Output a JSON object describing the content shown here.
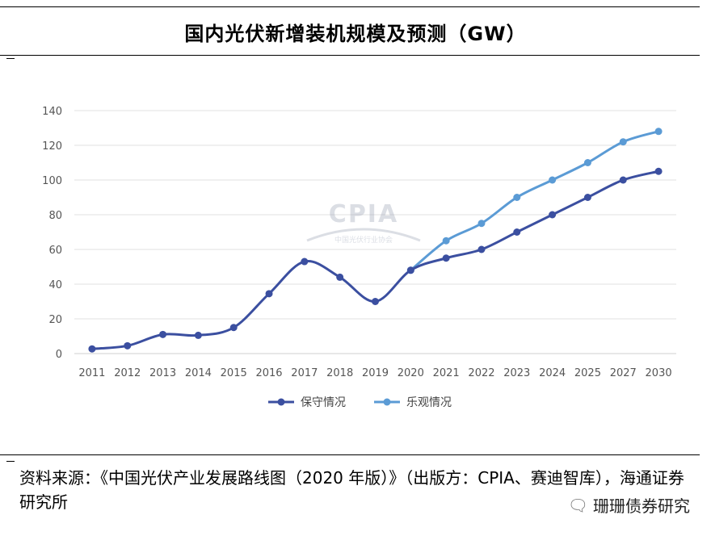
{
  "header": {
    "title": "国内光伏新增装机规模及预测（GW）"
  },
  "watermark": {
    "logo_text": "CPIA",
    "logo_subtext": "中国光伏行业协会"
  },
  "chart_data": {
    "type": "line",
    "title": "国内光伏新增装机规模及预测（GW）",
    "categories": [
      "2011",
      "2012",
      "2013",
      "2014",
      "2015",
      "2016",
      "2017",
      "2018",
      "2019",
      "2020",
      "2021",
      "2022",
      "2023",
      "2024",
      "2025",
      "2027",
      "2030"
    ],
    "series": [
      {
        "name": "保守情况",
        "color": "#3b4fa0",
        "values": [
          2.7,
          4.5,
          11,
          10.5,
          15,
          34.5,
          53,
          44,
          30,
          48,
          55,
          60,
          70,
          80,
          90,
          100,
          105
        ]
      },
      {
        "name": "乐观情况",
        "color": "#5b9bd5",
        "values": [
          null,
          null,
          null,
          null,
          null,
          null,
          null,
          null,
          null,
          48,
          65,
          75,
          90,
          100,
          110,
          122,
          128
        ]
      }
    ],
    "yticks": [
      0,
      20,
      40,
      60,
      80,
      100,
      120,
      140
    ],
    "ylim": [
      0,
      140
    ],
    "grid": true,
    "legend": "bottom"
  },
  "footer": {
    "source": "资料来源：《中国光伏产业发展路线图（2020 年版）》（出版方：CPIA、赛迪智库），海通证券研究所",
    "brand_icon": "wechat-icon",
    "brand": "珊珊债券研究"
  }
}
